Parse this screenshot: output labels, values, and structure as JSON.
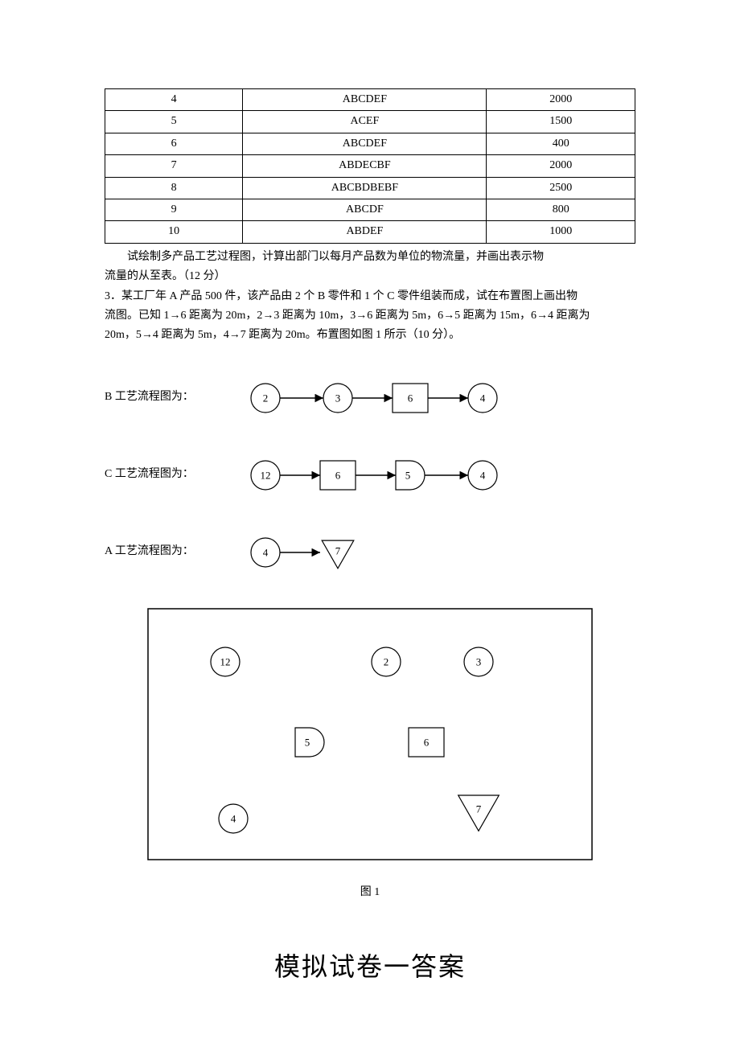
{
  "table": {
    "rows": [
      [
        "4",
        "ABCDEF",
        "2000"
      ],
      [
        "5",
        "ACEF",
        "1500"
      ],
      [
        "6",
        "ABCDEF",
        "400"
      ],
      [
        "7",
        "ABDECBF",
        "2000"
      ],
      [
        "8",
        "ABCBDBEBF",
        "2500"
      ],
      [
        "9",
        "ABCDF",
        "800"
      ],
      [
        "10",
        "ABDEF",
        "1000"
      ]
    ]
  },
  "text": {
    "p1": "试绘制多产品工艺过程图，计算出部门以每月产品数为单位的物流量，并画出表示物",
    "p2": "流量的从至表。（12 分）",
    "p3": "3．某工厂年 A 产品 500 件，该产品由 2 个 B 零件和 1 个 C 零件组装而成，试在布置图上画出物",
    "p4": "流图。已知 1→6 距离为 20m，2→3 距离为 10m，3→6 距离为 5m，6→5 距离为 15m，6→4 距离为",
    "p5": "20m，5→4 距离为 5m，4→7 距离为 20m。布置图如图 1 所示（10 分）。"
  },
  "flows": {
    "b_label": "B 工艺流程图为：",
    "c_label": "C 工艺流程图为：",
    "a_label": "A 工艺流程图为：",
    "b_nodes": [
      "2",
      "3",
      "6",
      "4"
    ],
    "c_nodes": [
      "12",
      "6",
      "5",
      "4"
    ],
    "a_nodes": [
      "4",
      "7"
    ]
  },
  "layout": {
    "caption": "图 1",
    "nodes": {
      "n12": "12",
      "n2": "2",
      "n3": "3",
      "n5": "5",
      "n6": "6",
      "n4": "4",
      "n7": "7"
    }
  },
  "answer_title": "模拟试卷一答案",
  "style": {
    "stroke": "#000000",
    "fill": "#ffffff",
    "text": "#000000",
    "node_fontsize": 13,
    "circle_r": 18,
    "rect_w": 44,
    "rect_h": 36
  }
}
